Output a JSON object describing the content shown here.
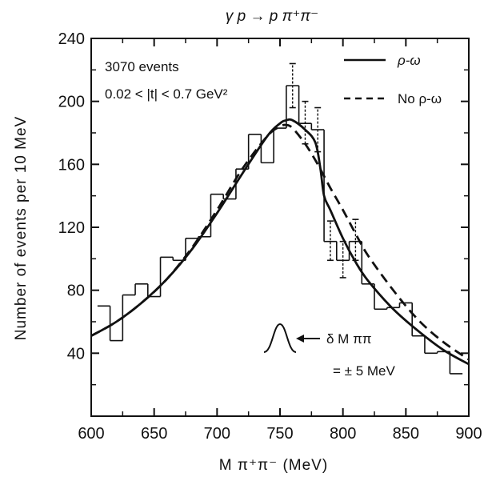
{
  "chart_data": {
    "type": "line",
    "title": "γ p → p π⁺π⁻",
    "xlabel": "M π⁺π⁻ (MeV)",
    "ylabel": "Number of events per 10 MeV",
    "xlim": [
      600,
      900
    ],
    "ylim": [
      0,
      240
    ],
    "x_ticks": [
      600,
      650,
      700,
      750,
      800,
      850,
      900
    ],
    "y_ticks": [
      40,
      80,
      120,
      160,
      200,
      240
    ],
    "grid": false,
    "legend_position": "top-right",
    "annotations": {
      "events": "3070 events",
      "t_range": "0.02 < |t| < 0.7 GeV²",
      "resolution_label": "δ M ππ",
      "resolution_value": "= ± 5 MeV"
    },
    "histogram": {
      "bin_width": 10,
      "bins": [
        {
          "x": 610,
          "y": 70
        },
        {
          "x": 620,
          "y": 48
        },
        {
          "x": 630,
          "y": 77
        },
        {
          "x": 640,
          "y": 84
        },
        {
          "x": 650,
          "y": 76
        },
        {
          "x": 660,
          "y": 101
        },
        {
          "x": 670,
          "y": 99
        },
        {
          "x": 680,
          "y": 113
        },
        {
          "x": 690,
          "y": 114
        },
        {
          "x": 700,
          "y": 141
        },
        {
          "x": 710,
          "y": 138
        },
        {
          "x": 720,
          "y": 157
        },
        {
          "x": 730,
          "y": 179
        },
        {
          "x": 740,
          "y": 161
        },
        {
          "x": 750,
          "y": 183
        },
        {
          "x": 760,
          "y": 210
        },
        {
          "x": 770,
          "y": 186
        },
        {
          "x": 780,
          "y": 182
        },
        {
          "x": 790,
          "y": 111
        },
        {
          "x": 800,
          "y": 99
        },
        {
          "x": 810,
          "y": 111
        },
        {
          "x": 820,
          "y": 84
        },
        {
          "x": 830,
          "y": 68
        },
        {
          "x": 840,
          "y": 69
        },
        {
          "x": 850,
          "y": 72
        },
        {
          "x": 860,
          "y": 51
        },
        {
          "x": 870,
          "y": 40
        },
        {
          "x": 880,
          "y": 41
        },
        {
          "x": 890,
          "y": 27
        }
      ],
      "error_bars": [
        {
          "x": 760,
          "low": 196,
          "high": 224
        },
        {
          "x": 770,
          "low": 173,
          "high": 200
        },
        {
          "x": 780,
          "low": 168,
          "high": 196
        },
        {
          "x": 790,
          "low": 99,
          "high": 124
        },
        {
          "x": 800,
          "low": 88,
          "high": 111
        },
        {
          "x": 810,
          "low": 99,
          "high": 125
        }
      ]
    },
    "series": [
      {
        "name": "ρ-ω",
        "style": "solid",
        "x": [
          600,
          620,
          640,
          660,
          680,
          700,
          720,
          740,
          750,
          755,
          760,
          770,
          778,
          782,
          785,
          790,
          800,
          810,
          820,
          840,
          860,
          880,
          900
        ],
        "y": [
          51,
          60,
          72,
          87,
          106,
          129,
          154,
          178,
          186,
          188,
          188,
          182,
          174,
          158,
          140,
          131,
          113,
          98,
          86,
          68,
          54,
          42,
          33
        ]
      },
      {
        "name": "No ρ-ω",
        "style": "dashed",
        "x": [
          600,
          620,
          640,
          660,
          680,
          700,
          720,
          740,
          750,
          755,
          760,
          770,
          780,
          790,
          800,
          810,
          820,
          840,
          860,
          880,
          900
        ],
        "y": [
          51,
          60,
          72,
          87,
          107,
          131,
          157,
          178,
          184,
          185,
          183,
          173,
          160,
          145,
          131,
          116,
          102,
          80,
          61,
          47,
          36
        ]
      }
    ],
    "colors": {
      "ink": "#111111",
      "background": "#ffffff"
    }
  }
}
